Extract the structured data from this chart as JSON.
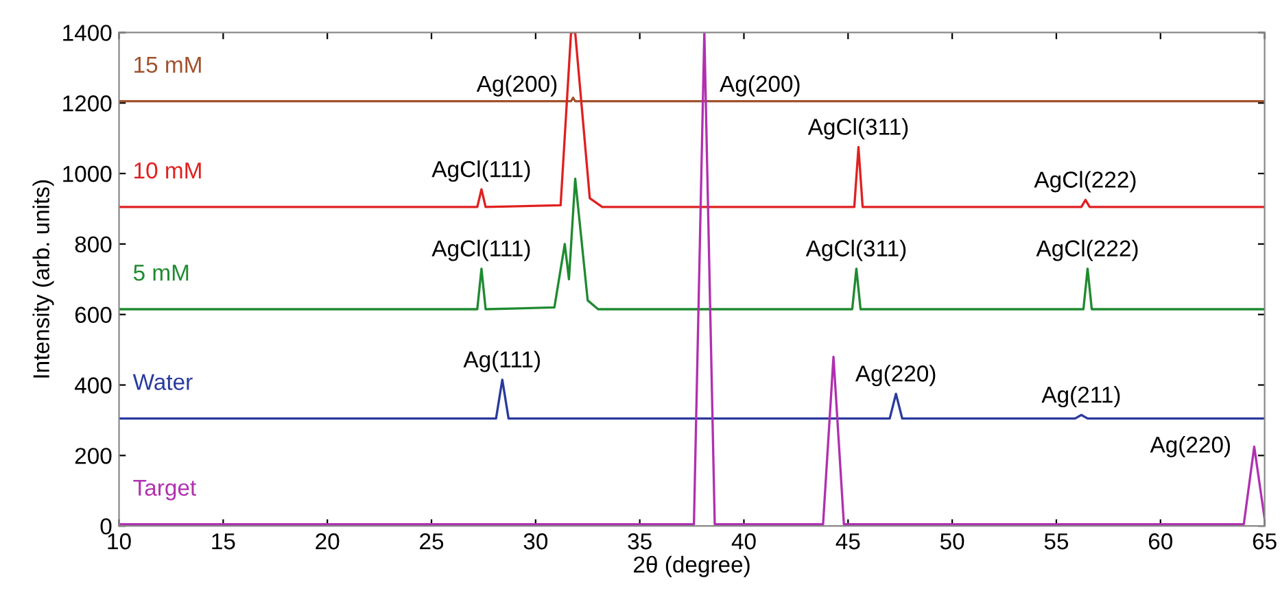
{
  "chart_data": {
    "type": "line",
    "xlabel": "2θ (degree)",
    "ylabel": "Intensity (arb. units)",
    "xlim": [
      10,
      65
    ],
    "ylim": [
      0,
      1400
    ],
    "xticks": [
      10,
      15,
      20,
      25,
      30,
      35,
      40,
      45,
      50,
      55,
      60,
      65
    ],
    "yticks": [
      0,
      200,
      400,
      600,
      800,
      1000,
      1200,
      1400
    ],
    "grid": false,
    "legend": false,
    "marker": "none",
    "line_style": "solid",
    "series": [
      {
        "name": "15 mM",
        "color": "#a0522d",
        "x": [
          10,
          31.7,
          31.8,
          31.9,
          65
        ],
        "values": [
          1205,
          1205,
          1215,
          1205,
          1205
        ]
      },
      {
        "name": "10 mM",
        "color": "#e02020",
        "x": [
          10,
          27.2,
          27.4,
          27.6,
          31.2,
          31.7,
          31.9,
          32.6,
          33.2,
          45.3,
          45.5,
          45.7,
          56.2,
          56.4,
          56.6,
          65
        ],
        "values": [
          905,
          905,
          955,
          905,
          910,
          1400,
          1400,
          930,
          905,
          905,
          1075,
          905,
          905,
          925,
          905,
          905
        ]
      },
      {
        "name": "5 mM",
        "color": "#1f8a30",
        "x": [
          10,
          27.2,
          27.4,
          27.6,
          30.9,
          31.4,
          31.6,
          31.9,
          32.5,
          33,
          45.2,
          45.4,
          45.6,
          56.3,
          56.5,
          56.7,
          65
        ],
        "values": [
          615,
          615,
          730,
          615,
          620,
          800,
          700,
          985,
          640,
          615,
          615,
          730,
          615,
          615,
          730,
          615,
          615
        ]
      },
      {
        "name": "Water",
        "color": "#2a3a9e",
        "x": [
          10,
          28.1,
          28.4,
          28.7,
          47.0,
          47.3,
          47.6,
          55.9,
          56.2,
          56.5,
          65
        ],
        "values": [
          305,
          305,
          415,
          305,
          305,
          375,
          305,
          305,
          315,
          305,
          305
        ]
      },
      {
        "name": "Target",
        "color": "#b030b0",
        "x": [
          10,
          37.6,
          38.1,
          38.6,
          43.8,
          44.3,
          44.8,
          64.0,
          64.5,
          65
        ],
        "values": [
          5,
          5,
          1400,
          5,
          5,
          480,
          5,
          5,
          225,
          20
        ]
      }
    ],
    "annotations": [
      {
        "text": "Ag(200)",
        "x": 31.8,
        "y": 1400
      },
      {
        "text": "AgCl(111)",
        "x": 27.4,
        "y": 955
      },
      {
        "text": "AgCl(111)",
        "x": 27.4,
        "y": 730
      },
      {
        "text": "Ag(111)",
        "x": 28.4,
        "y": 415
      },
      {
        "text": "Ag(200)",
        "x": 38.1,
        "y": 1400
      },
      {
        "text": "AgCl(311)",
        "x": 45.5,
        "y": 1075
      },
      {
        "text": "AgCl(222)",
        "x": 56.4,
        "y": 925
      },
      {
        "text": "AgCl(311)",
        "x": 45.4,
        "y": 730
      },
      {
        "text": "AgCl(222)",
        "x": 56.5,
        "y": 730
      },
      {
        "text": "Ag(220)",
        "x": 47.3,
        "y": 375
      },
      {
        "text": "Ag(211)",
        "x": 56.2,
        "y": 315
      },
      {
        "text": "Ag(220)",
        "x": 64.5,
        "y": 225
      }
    ]
  }
}
